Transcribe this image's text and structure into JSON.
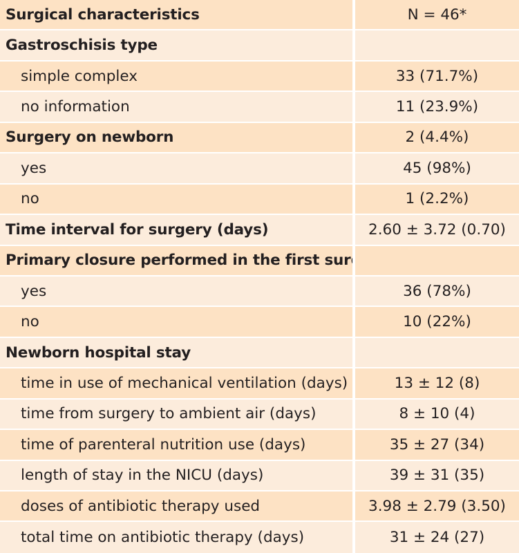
{
  "table": {
    "header": {
      "label": "Surgical characteristics",
      "value": "N = 46*"
    },
    "rows": [
      {
        "label": "Gastroschisis type",
        "value": "",
        "style": "section"
      },
      {
        "label": "simple complex",
        "value": "33 (71.7%)",
        "style": "sub"
      },
      {
        "label": "no information",
        "value": "11 (23.9%)",
        "style": "sub"
      },
      {
        "label": "Surgery on newborn",
        "value": "2 (4.4%)",
        "style": "section"
      },
      {
        "label": "yes",
        "value": "45 (98%)",
        "style": "sub"
      },
      {
        "label": "no",
        "value": "1 (2.2%)",
        "style": "sub"
      },
      {
        "label": "Time interval for surgery (days)",
        "value": "2.60 ± 3.72 (0.70)",
        "style": "section"
      },
      {
        "label": "Primary closure performed in the first surgery",
        "value": "",
        "style": "section"
      },
      {
        "label": "yes",
        "value": "36 (78%)",
        "style": "sub"
      },
      {
        "label": "no",
        "value": "10 (22%)",
        "style": "sub"
      },
      {
        "label": "Newborn hospital stay",
        "value": "",
        "style": "section"
      },
      {
        "label": "time in use of mechanical ventilation (days)",
        "value": "13 ± 12 (8)",
        "style": "sub"
      },
      {
        "label": "time from surgery to ambient air (days)",
        "value": "8 ± 10 (4)",
        "style": "sub"
      },
      {
        "label": "time of parenteral nutrition use (days)",
        "value": "35 ± 27 (34)",
        "style": "sub"
      },
      {
        "label": "length of stay in the NICU (days)",
        "value": "39 ± 31 (35)",
        "style": "sub"
      },
      {
        "label": "doses of antibiotic therapy used",
        "value": "3.98 ± 2.79 (3.50)",
        "style": "sub"
      },
      {
        "label": "total time on antibiotic therapy (days)",
        "value": "31 ± 24 (27)",
        "style": "sub"
      }
    ]
  },
  "colors": {
    "row_dark": "#fde2c4",
    "row_light": "#fcecdc",
    "text": "#231f20"
  }
}
